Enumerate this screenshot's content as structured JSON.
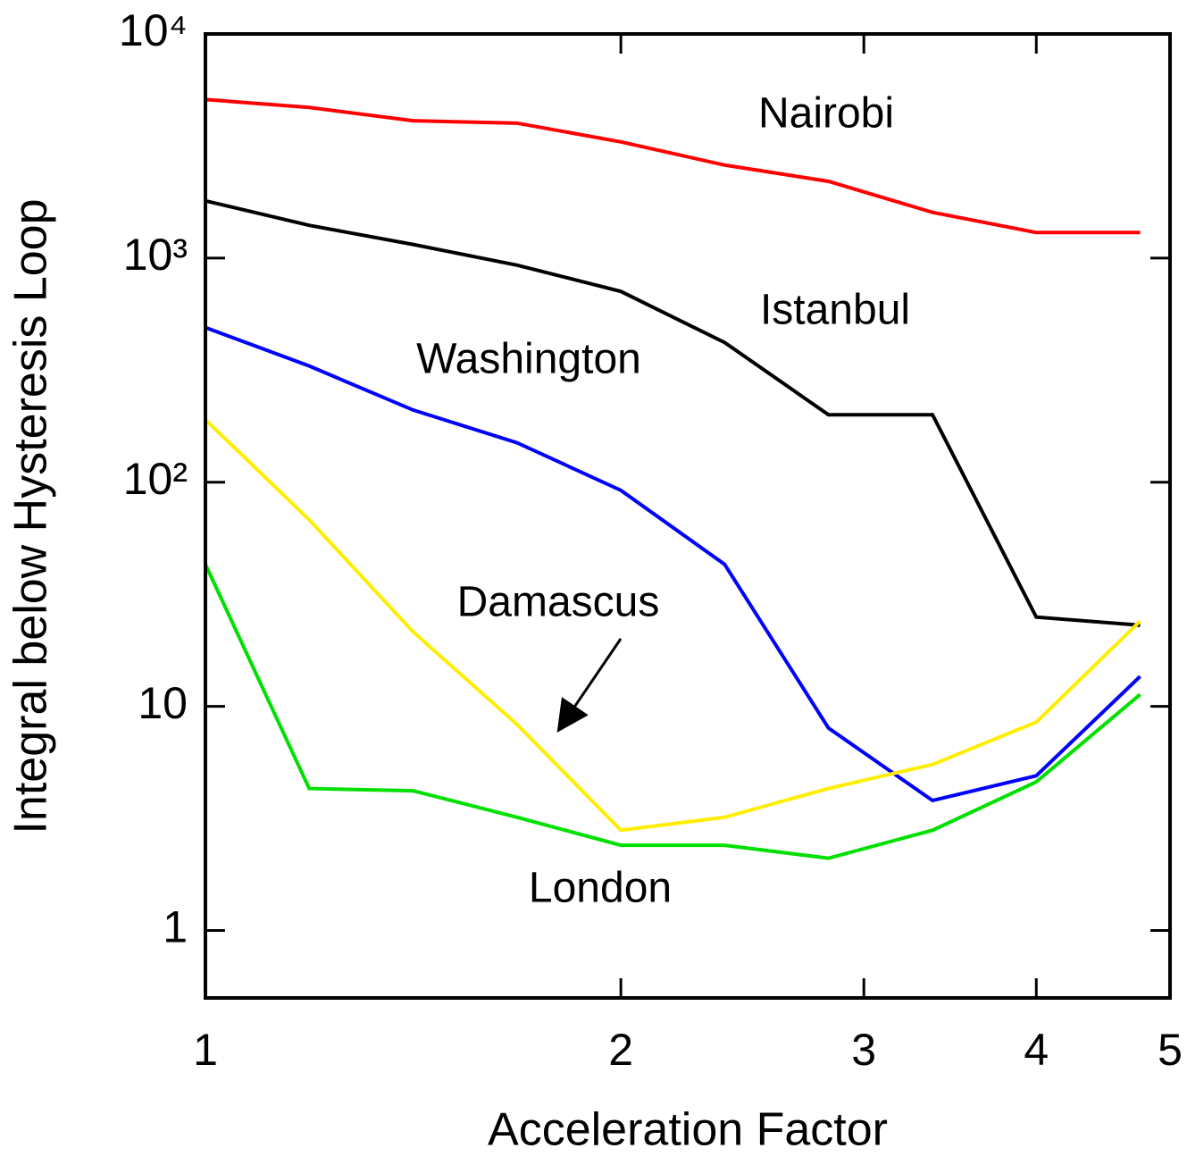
{
  "chart_data": {
    "type": "line",
    "xlabel": "Acceleration Factor",
    "ylabel": "Integral below Hysteresis Loop",
    "xscale": "log",
    "yscale": "log",
    "xlim": [
      1,
      5
    ],
    "ylim": [
      0.5,
      10000
    ],
    "xticks": [
      1,
      2,
      3,
      4,
      5
    ],
    "yticks": [
      {
        "value": 1,
        "label": "1"
      },
      {
        "value": 10,
        "label": "10"
      },
      {
        "value": 100,
        "label": "10²"
      },
      {
        "value": 1000,
        "label": "10³"
      },
      {
        "value": 10000,
        "label": "10⁴"
      }
    ],
    "x": [
      1,
      1.189,
      1.414,
      1.682,
      2,
      2.378,
      2.828,
      3.364,
      4,
      4.757
    ],
    "series": [
      {
        "name": "Nairobi",
        "color": "#ff0000",
        "values": [
          5100,
          4700,
          4100,
          4000,
          3300,
          2600,
          2200,
          1600,
          1300,
          1300
        ]
      },
      {
        "name": "Istanbul",
        "color": "#000000",
        "values": [
          1800,
          1400,
          1150,
          930,
          710,
          420,
          200,
          200,
          25,
          23
        ]
      },
      {
        "name": "Washington",
        "color": "#0000ff",
        "values": [
          490,
          330,
          210,
          150,
          92,
          43,
          8.0,
          3.8,
          4.9,
          13.6
        ]
      },
      {
        "name": "Damascus",
        "color": "#ffee00",
        "values": [
          190,
          68,
          21.5,
          8.3,
          2.8,
          3.2,
          4.3,
          5.5,
          8.5,
          24
        ]
      },
      {
        "name": "London",
        "color": "#00e000",
        "values": [
          43,
          4.3,
          4.2,
          3.2,
          2.4,
          2.4,
          2.1,
          2.8,
          4.6,
          11.3
        ]
      }
    ]
  }
}
